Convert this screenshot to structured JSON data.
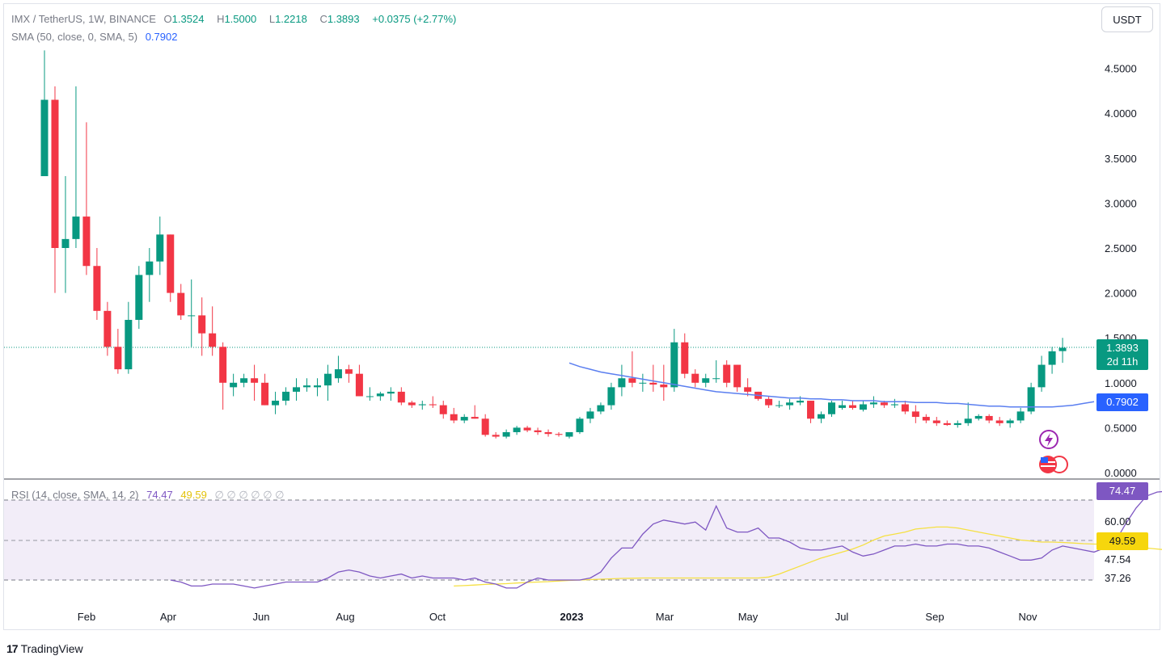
{
  "header": {
    "symbol": "IMX / TetherUS, 1W, BINANCE",
    "open_label": "O",
    "open": "1.3524",
    "high_label": "H",
    "high": "1.5000",
    "low_label": "L",
    "low": "1.2218",
    "close_label": "C",
    "close": "1.3893",
    "change": "+0.0375 (+2.77%)",
    "sma_label": "SMA (50, close, 0, SMA, 5)",
    "sma_value": "0.7902"
  },
  "currency_button": "USDT",
  "badges": {
    "price": "1.3893",
    "countdown": "2d 11h",
    "sma": "0.7902",
    "rsi": "74.47",
    "rsi_ma": "49.59"
  },
  "rsi_legend": {
    "label": "RSI (14, close, SMA, 14, 2)",
    "rsi": "74.47",
    "ma": "49.59",
    "empty_values": "∅ ∅ ∅ ∅ ∅ ∅"
  },
  "brand": "TradingView",
  "colors": {
    "up": "#089981",
    "down": "#f23645",
    "sma": "#5b7ff0",
    "rsi": "#7e57c2",
    "rsi_ma": "#f5e042"
  },
  "chart_data": {
    "type": "candlestick",
    "price_axis": {
      "ticks": [
        "4.5000",
        "4.0000",
        "3.5000",
        "3.0000",
        "2.5000",
        "2.0000",
        "1.5000",
        "1.0000",
        "0.5000",
        "0.0000"
      ]
    },
    "time_axis": {
      "labels": [
        "Feb",
        "Apr",
        "Jun",
        "Aug",
        "Oct",
        "2023",
        "Mar",
        "May",
        "Jul",
        "Sep",
        "Nov"
      ]
    },
    "candles_ohlc": [
      [
        3.3,
        4.7,
        3.3,
        4.15
      ],
      [
        4.15,
        4.3,
        2.0,
        2.5
      ],
      [
        2.5,
        3.3,
        2.0,
        2.6
      ],
      [
        2.6,
        4.3,
        2.5,
        2.85
      ],
      [
        2.85,
        3.9,
        2.2,
        2.3
      ],
      [
        2.3,
        2.5,
        1.7,
        1.8
      ],
      [
        1.8,
        1.9,
        1.3,
        1.4
      ],
      [
        1.4,
        1.6,
        1.1,
        1.15
      ],
      [
        1.15,
        1.9,
        1.1,
        1.7
      ],
      [
        1.7,
        2.3,
        1.6,
        2.2
      ],
      [
        2.2,
        2.5,
        1.9,
        2.35
      ],
      [
        2.35,
        2.85,
        2.2,
        2.65
      ],
      [
        2.65,
        2.65,
        1.9,
        2.0
      ],
      [
        2.0,
        2.1,
        1.7,
        1.75
      ],
      [
        1.75,
        2.15,
        1.4,
        1.75
      ],
      [
        1.75,
        1.95,
        1.3,
        1.55
      ],
      [
        1.55,
        1.85,
        1.3,
        1.4
      ],
      [
        1.4,
        1.45,
        0.7,
        1.0
      ],
      [
        0.95,
        1.1,
        0.85,
        1.0
      ],
      [
        1.0,
        1.1,
        0.95,
        1.05
      ],
      [
        1.05,
        1.2,
        0.8,
        1.0
      ],
      [
        1.0,
        1.1,
        0.75,
        0.75
      ],
      [
        0.75,
        0.9,
        0.65,
        0.8
      ],
      [
        0.8,
        0.95,
        0.75,
        0.9
      ],
      [
        0.9,
        1.05,
        0.8,
        0.95
      ],
      [
        0.95,
        1.05,
        0.9,
        0.97
      ],
      [
        0.95,
        1.05,
        0.85,
        0.97
      ],
      [
        0.97,
        1.2,
        0.8,
        1.1
      ],
      [
        1.05,
        1.3,
        1.0,
        1.15
      ],
      [
        1.15,
        1.2,
        1.0,
        1.1
      ],
      [
        1.1,
        1.2,
        0.85,
        0.85
      ],
      [
        0.85,
        0.95,
        0.8,
        0.85
      ],
      [
        0.85,
        0.9,
        0.8,
        0.88
      ],
      [
        0.88,
        0.95,
        0.8,
        0.9
      ],
      [
        0.9,
        0.95,
        0.75,
        0.78
      ],
      [
        0.78,
        0.8,
        0.72,
        0.75
      ],
      [
        0.75,
        0.8,
        0.7,
        0.76
      ],
      [
        0.76,
        0.85,
        0.72,
        0.75
      ],
      [
        0.75,
        0.8,
        0.6,
        0.65
      ],
      [
        0.65,
        0.72,
        0.55,
        0.58
      ],
      [
        0.58,
        0.65,
        0.55,
        0.62
      ],
      [
        0.62,
        0.75,
        0.6,
        0.6
      ],
      [
        0.6,
        0.65,
        0.4,
        0.42
      ],
      [
        0.42,
        0.45,
        0.38,
        0.4
      ],
      [
        0.4,
        0.48,
        0.38,
        0.45
      ],
      [
        0.45,
        0.52,
        0.42,
        0.5
      ],
      [
        0.5,
        0.52,
        0.45,
        0.47
      ],
      [
        0.47,
        0.5,
        0.42,
        0.45
      ],
      [
        0.45,
        0.48,
        0.4,
        0.43
      ],
      [
        0.43,
        0.45,
        0.4,
        0.42
      ],
      [
        0.4,
        0.45,
        0.38,
        0.45
      ],
      [
        0.45,
        0.62,
        0.43,
        0.6
      ],
      [
        0.6,
        0.72,
        0.55,
        0.68
      ],
      [
        0.68,
        0.78,
        0.65,
        0.75
      ],
      [
        0.75,
        1.0,
        0.7,
        0.95
      ],
      [
        0.95,
        1.2,
        0.85,
        1.05
      ],
      [
        1.05,
        1.35,
        0.95,
        1.0
      ],
      [
        1.0,
        1.1,
        0.9,
        1.0
      ],
      [
        1.0,
        1.2,
        0.9,
        0.98
      ],
      [
        0.98,
        1.2,
        0.8,
        0.95
      ],
      [
        0.95,
        1.6,
        0.9,
        1.45
      ],
      [
        1.45,
        1.55,
        1.05,
        1.1
      ],
      [
        1.1,
        1.15,
        0.95,
        1.0
      ],
      [
        1.0,
        1.1,
        0.95,
        1.05
      ],
      [
        1.05,
        1.25,
        1.0,
        1.05
      ],
      [
        1.2,
        1.25,
        0.95,
        1.0
      ],
      [
        1.2,
        1.2,
        0.9,
        0.95
      ],
      [
        0.95,
        1.05,
        0.85,
        0.9
      ],
      [
        0.9,
        0.9,
        0.8,
        0.82
      ],
      [
        0.82,
        0.85,
        0.72,
        0.75
      ],
      [
        0.75,
        0.8,
        0.72,
        0.75
      ],
      [
        0.75,
        0.82,
        0.7,
        0.78
      ],
      [
        0.78,
        0.85,
        0.75,
        0.8
      ],
      [
        0.8,
        0.8,
        0.55,
        0.6
      ],
      [
        0.6,
        0.68,
        0.55,
        0.65
      ],
      [
        0.65,
        0.8,
        0.62,
        0.78
      ],
      [
        0.72,
        0.8,
        0.7,
        0.75
      ],
      [
        0.75,
        0.8,
        0.7,
        0.72
      ],
      [
        0.7,
        0.8,
        0.68,
        0.76
      ],
      [
        0.76,
        0.85,
        0.72,
        0.78
      ],
      [
        0.78,
        0.8,
        0.72,
        0.75
      ],
      [
        0.75,
        0.82,
        0.72,
        0.76
      ],
      [
        0.76,
        0.8,
        0.65,
        0.68
      ],
      [
        0.68,
        0.75,
        0.55,
        0.62
      ],
      [
        0.62,
        0.65,
        0.55,
        0.58
      ],
      [
        0.58,
        0.62,
        0.52,
        0.55
      ],
      [
        0.55,
        0.58,
        0.52,
        0.53
      ],
      [
        0.53,
        0.58,
        0.5,
        0.55
      ],
      [
        0.55,
        0.78,
        0.52,
        0.6
      ],
      [
        0.6,
        0.65,
        0.58,
        0.63
      ],
      [
        0.63,
        0.65,
        0.55,
        0.58
      ],
      [
        0.58,
        0.62,
        0.52,
        0.55
      ],
      [
        0.55,
        0.6,
        0.5,
        0.58
      ],
      [
        0.58,
        0.72,
        0.55,
        0.68
      ],
      [
        0.68,
        1.0,
        0.65,
        0.95
      ],
      [
        0.95,
        1.3,
        0.9,
        1.2
      ],
      [
        1.2,
        1.4,
        1.1,
        1.35
      ],
      [
        1.3524,
        1.5,
        1.2218,
        1.3893
      ]
    ],
    "sma_start_index": 50,
    "sma": [
      1.22,
      1.18,
      1.15,
      1.12,
      1.1,
      1.08,
      1.06,
      1.04,
      1.02,
      1.0,
      0.98,
      0.96,
      0.94,
      0.92,
      0.9,
      0.89,
      0.88,
      0.87,
      0.86,
      0.85,
      0.84,
      0.83,
      0.83,
      0.82,
      0.82,
      0.81,
      0.81,
      0.8,
      0.8,
      0.8,
      0.79,
      0.79,
      0.79,
      0.78,
      0.78,
      0.78,
      0.77,
      0.77,
      0.76,
      0.75,
      0.74,
      0.74,
      0.73,
      0.73,
      0.73,
      0.73,
      0.73,
      0.74,
      0.75,
      0.77,
      0.79
    ],
    "rsi_axis": {
      "ticks": [
        "60.00",
        "47.54",
        "37.26"
      ],
      "top_band": 70,
      "bottom_band": 30,
      "middle": 50,
      "range": [
        30,
        80
      ]
    },
    "rsi_start_index": 12,
    "rsi": [
      30,
      29,
      27,
      27,
      28,
      28,
      28,
      27,
      26,
      27,
      28,
      29,
      29,
      29,
      29,
      31,
      34,
      35,
      34,
      32,
      31,
      32,
      33,
      31,
      32,
      31,
      31,
      31,
      30,
      31,
      29,
      28,
      26,
      26,
      29,
      31,
      30,
      30,
      30,
      30,
      31,
      34,
      41,
      46,
      46,
      53,
      58,
      60,
      59,
      58,
      59,
      55,
      67,
      56,
      54,
      54,
      56,
      51,
      51,
      49,
      46,
      45,
      45,
      46,
      47,
      44,
      42,
      43,
      45,
      47,
      47,
      48,
      47,
      47,
      48,
      48,
      47,
      47,
      46,
      44,
      42,
      40,
      40,
      41,
      45,
      47,
      46,
      45,
      44,
      46,
      49,
      58,
      66,
      72,
      74,
      74.47
    ],
    "rsi_ma_start_index": 39,
    "rsi_ma": [
      27,
      27.2,
      27.5,
      27.8,
      28,
      28.2,
      28.5,
      28.8,
      29,
      29.2,
      29.5,
      29.8,
      30,
      30.2,
      30.4,
      30.6,
      30.8,
      30.9,
      31,
      31,
      31,
      31,
      31,
      31,
      31,
      31,
      31,
      31,
      31,
      31,
      31.5,
      33,
      35,
      37,
      39,
      41,
      42.5,
      44,
      45.5,
      47.5,
      50,
      52,
      53,
      54,
      55.5,
      56,
      56.5,
      56.5,
      56,
      55,
      54,
      53,
      52,
      51,
      50,
      49.5,
      49,
      49,
      48.8,
      48.5,
      48.2,
      48,
      48,
      47.5,
      47,
      46.5,
      46,
      45.5,
      45,
      44.8,
      44.7,
      44.5,
      44.5,
      44.8,
      45,
      45,
      45,
      45,
      45,
      45.3,
      46,
      47,
      48,
      49.59
    ]
  }
}
